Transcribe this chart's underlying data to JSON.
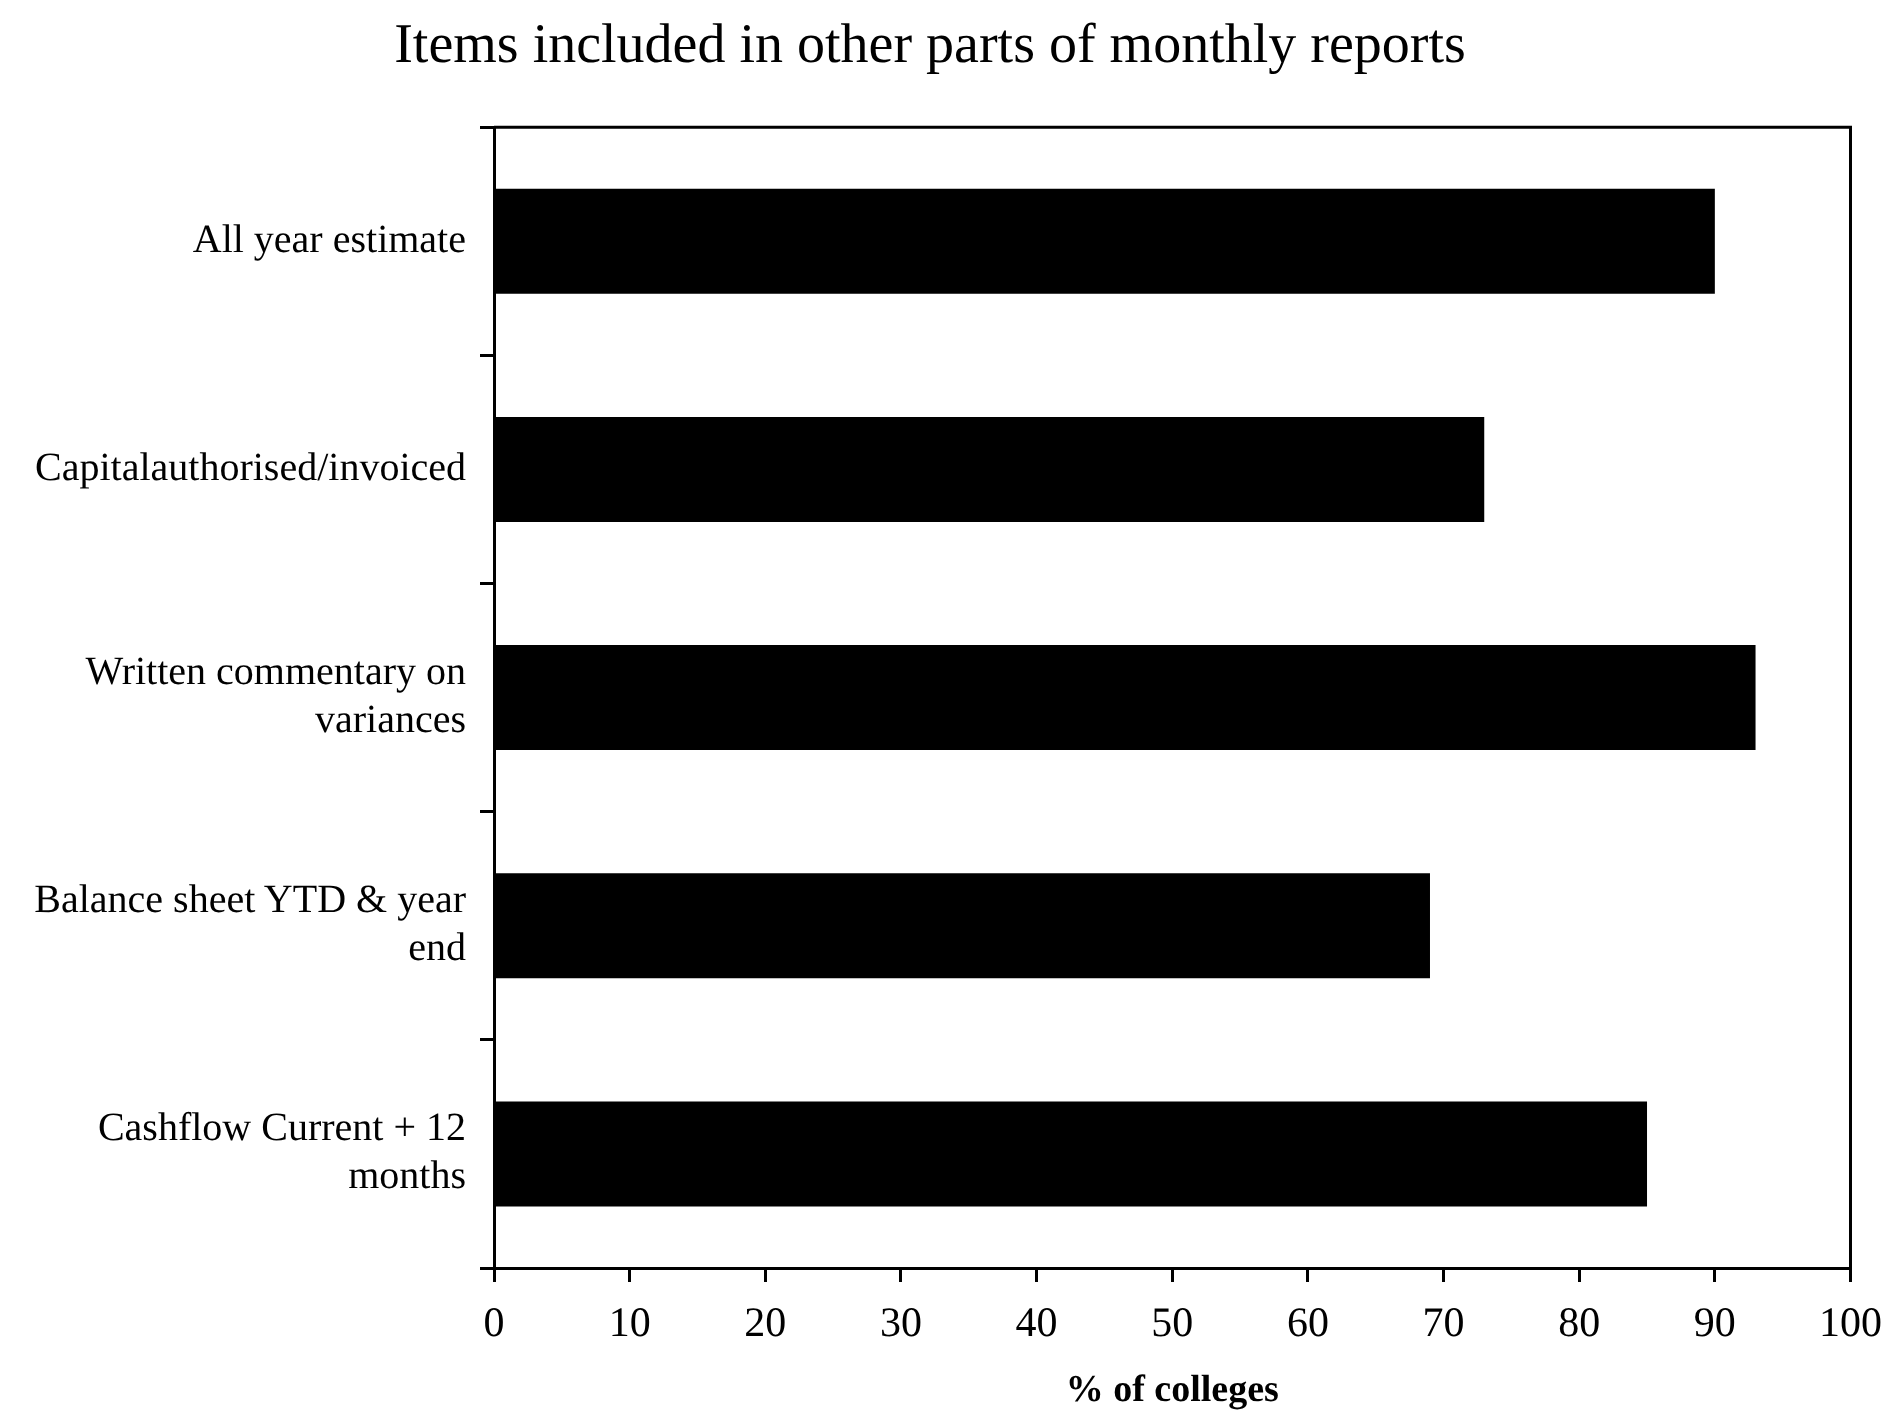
{
  "chart_data": {
    "type": "bar",
    "orientation": "horizontal",
    "title": "Items included in other parts of monthly reports",
    "xlabel": "% of colleges",
    "categories": [
      "All year estimate",
      "Capitalauthorised/invoiced",
      "Written commentary on variances",
      "Balance sheet YTD & year end",
      "Cashflow Current + 12 months"
    ],
    "values": [
      90,
      73,
      93,
      69,
      85
    ],
    "color": "#000000",
    "xlim": [
      0,
      100
    ],
    "xticks": [
      0,
      10,
      20,
      30,
      40,
      50,
      60,
      70,
      80,
      90,
      100
    ]
  }
}
